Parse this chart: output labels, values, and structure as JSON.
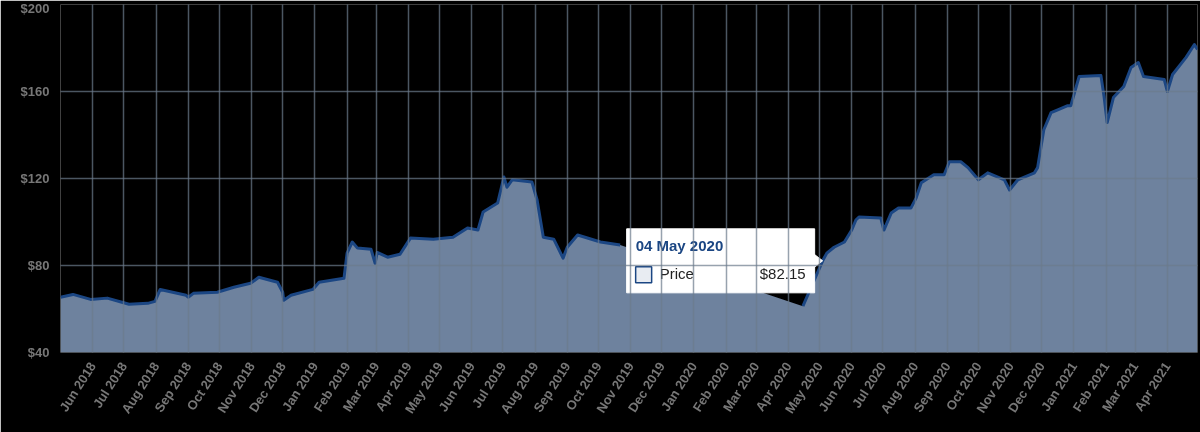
{
  "chart_data": {
    "type": "area",
    "legend": "bottom",
    "grid": true,
    "x": [
      "2018-05-01",
      "2018-05-13",
      "2018-05-30",
      "2018-06-15",
      "2018-06-30",
      "2018-07-06",
      "2018-07-24",
      "2018-07-31",
      "2018-08-05",
      "2018-08-30",
      "2018-09-01",
      "2018-09-06",
      "2018-09-29",
      "2018-10-15",
      "2018-10-31",
      "2018-11-08",
      "2018-11-26",
      "2018-12-01",
      "2018-12-02",
      "2018-12-09",
      "2018-12-30",
      "2019-01-05",
      "2019-01-29",
      "2019-02-01",
      "2019-02-06",
      "2019-02-11",
      "2019-02-24",
      "2019-02-28",
      "2019-03-02",
      "2019-03-12",
      "2019-03-24",
      "2019-04-03",
      "2019-04-25",
      "2019-05-14",
      "2019-05-28",
      "2019-06-07",
      "2019-06-12",
      "2019-06-26",
      "2019-07-02",
      "2019-07-05",
      "2019-07-10",
      "2019-07-29",
      "2019-08-03",
      "2019-08-09",
      "2019-08-19",
      "2019-08-28",
      "2019-09-01",
      "2019-09-11",
      "2019-10-03",
      "2019-10-22",
      "2020-01-15",
      "2020-04-15",
      "2020-05-04",
      "2020-05-08",
      "2020-05-15",
      "2020-05-25",
      "2020-06-01",
      "2020-06-05",
      "2020-06-08",
      "2020-06-29",
      "2020-07-02",
      "2020-07-09",
      "2020-07-16",
      "2020-07-28",
      "2020-08-02",
      "2020-08-07",
      "2020-08-19",
      "2020-08-29",
      "2020-09-03",
      "2020-09-14",
      "2020-09-21",
      "2020-10-01",
      "2020-10-10",
      "2020-10-26",
      "2020-10-31",
      "2020-11-08",
      "2020-11-24",
      "2020-11-27",
      "2020-12-03",
      "2020-12-10",
      "2020-12-17",
      "2020-12-26",
      "2020-12-29",
      "2021-01-06",
      "2021-01-27",
      "2021-01-30",
      "2021-02-02",
      "2021-02-08",
      "2021-02-18",
      "2021-02-25",
      "2021-03-04",
      "2021-03-09",
      "2021-03-29",
      "2021-04-01",
      "2021-04-06",
      "2021-04-19",
      "2021-04-27",
      "2021-04-30"
    ],
    "series": [
      {
        "name": "Price",
        "color": "#1b4683",
        "values": [
          65.4,
          66.7,
          64.4,
          65,
          63,
          62.2,
          62.6,
          63.5,
          69,
          66.3,
          65.4,
          67.2,
          67.7,
          70,
          71.8,
          74.6,
          72.3,
          67.7,
          64,
          66.3,
          69,
          72.3,
          74.1,
          85.7,
          90.8,
          88,
          87.5,
          81,
          86,
          83.8,
          85.2,
          92.6,
          92.1,
          93,
          97.2,
          96.3,
          104.6,
          108.7,
          120.7,
          116,
          119.4,
          118.4,
          110.1,
          93,
          92.1,
          83.4,
          88.4,
          94,
          90.8,
          89.4,
          null,
          61.3,
          82.15,
          85.7,
          88.4,
          90.8,
          96.3,
          100.9,
          102.3,
          101.8,
          96.3,
          104.1,
          106.4,
          106.4,
          111,
          118,
          121.7,
          121.7,
          127.7,
          127.7,
          125,
          119.4,
          122.6,
          119.4,
          114.7,
          119.4,
          122.6,
          125,
          142.4,
          150.3,
          151.7,
          153.5,
          153.5,
          166.9,
          167.3,
          157.7,
          145.7,
          157.2,
          162.3,
          171,
          173.3,
          166.9,
          165.5,
          160,
          167.8,
          175.7,
          181.6,
          179.3
        ]
      }
    ],
    "xlim": [
      "2018-05-01",
      "2021-04-30"
    ],
    "xticks": [
      {
        "value": "2018-06-01",
        "label": "Jun 2018"
      },
      {
        "value": "2018-07-01",
        "label": "Jul 2018"
      },
      {
        "value": "2018-08-01",
        "label": "Aug 2018"
      },
      {
        "value": "2018-09-01",
        "label": "Sep 2018"
      },
      {
        "value": "2018-10-01",
        "label": "Oct 2018"
      },
      {
        "value": "2018-11-01",
        "label": "Nov 2018"
      },
      {
        "value": "2018-12-01",
        "label": "Dec 2018"
      },
      {
        "value": "2019-01-01",
        "label": "Jan 2019"
      },
      {
        "value": "2019-02-01",
        "label": "Feb 2019"
      },
      {
        "value": "2019-03-01",
        "label": "Mar 2019"
      },
      {
        "value": "2019-04-01",
        "label": "Apr 2019"
      },
      {
        "value": "2019-05-01",
        "label": "May 2019"
      },
      {
        "value": "2019-06-01",
        "label": "Jun 2019"
      },
      {
        "value": "2019-07-01",
        "label": "Jul 2019"
      },
      {
        "value": "2019-08-01",
        "label": "Aug 2019"
      },
      {
        "value": "2019-09-01",
        "label": "Sep 2019"
      },
      {
        "value": "2019-10-01",
        "label": "Oct 2019"
      },
      {
        "value": "2019-11-01",
        "label": "Nov 2019"
      },
      {
        "value": "2019-12-01",
        "label": "Dec 2019"
      },
      {
        "value": "2020-01-01",
        "label": "Jan 2020"
      },
      {
        "value": "2020-02-01",
        "label": "Feb 2020"
      },
      {
        "value": "2020-03-01",
        "label": "Mar 2020"
      },
      {
        "value": "2020-04-01",
        "label": "Apr 2020"
      },
      {
        "value": "2020-05-01",
        "label": "May 2020"
      },
      {
        "value": "2020-06-01",
        "label": "Jun 2020"
      },
      {
        "value": "2020-07-01",
        "label": "Jul 2020"
      },
      {
        "value": "2020-08-01",
        "label": "Aug 2020"
      },
      {
        "value": "2020-09-01",
        "label": "Sep 2020"
      },
      {
        "value": "2020-10-01",
        "label": "Oct 2020"
      },
      {
        "value": "2020-11-01",
        "label": "Nov 2020"
      },
      {
        "value": "2020-12-01",
        "label": "Dec 2020"
      },
      {
        "value": "2021-01-01",
        "label": "Jan 2021"
      },
      {
        "value": "2021-02-01",
        "label": "Feb 2021"
      },
      {
        "value": "2021-03-01",
        "label": "Mar 2021"
      },
      {
        "value": "2021-04-01",
        "label": "Apr 2021"
      }
    ],
    "ylim": [
      40,
      200
    ],
    "yticks": [
      {
        "value": 40,
        "label": "$40"
      },
      {
        "value": 80,
        "label": "$80"
      },
      {
        "value": 120,
        "label": "$120"
      },
      {
        "value": 160,
        "label": "$160"
      },
      {
        "value": 200,
        "label": "$200"
      }
    ],
    "annotations": [
      "04 May 2020",
      {
        "text": "$82.15",
        "x": "2020-05-04",
        "y": 82.15
      }
    ]
  }
}
